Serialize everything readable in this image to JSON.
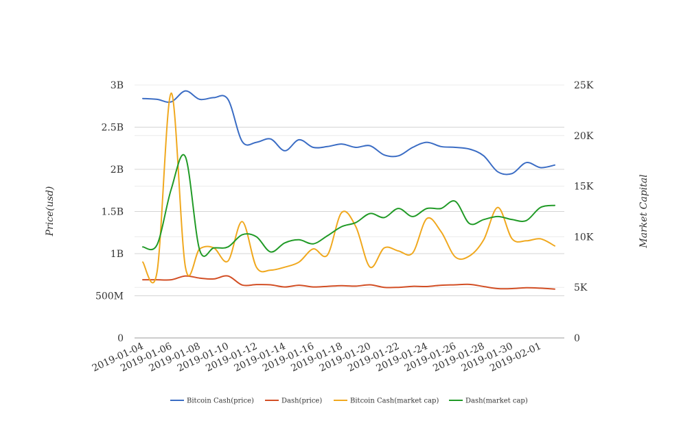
{
  "chart_data": {
    "type": "line",
    "ylabel": "Price(usd)",
    "y2label": "Market Capital",
    "ylim": [
      0,
      3000000000
    ],
    "y2lim": [
      0,
      25000
    ],
    "yticks": [
      {
        "value": 0,
        "label": "0"
      },
      {
        "value": 500000000,
        "label": "500M"
      },
      {
        "value": 1000000000,
        "label": "1B"
      },
      {
        "value": 1500000000,
        "label": "1.5B"
      },
      {
        "value": 2000000000,
        "label": "2B"
      },
      {
        "value": 2500000000,
        "label": "2.5B"
      },
      {
        "value": 3000000000,
        "label": "3B"
      }
    ],
    "y2ticks": [
      {
        "value": 0,
        "label": "0"
      },
      {
        "value": 5000,
        "label": "5K"
      },
      {
        "value": 10000,
        "label": "10K"
      },
      {
        "value": 15000,
        "label": "15K"
      },
      {
        "value": 20000,
        "label": "20K"
      },
      {
        "value": 25000,
        "label": "25K"
      }
    ],
    "x": [
      "2019-01-04",
      "2019-01-05",
      "2019-01-06",
      "2019-01-07",
      "2019-01-08",
      "2019-01-09",
      "2019-01-10",
      "2019-01-11",
      "2019-01-12",
      "2019-01-13",
      "2019-01-14",
      "2019-01-15",
      "2019-01-16",
      "2019-01-17",
      "2019-01-18",
      "2019-01-19",
      "2019-01-20",
      "2019-01-21",
      "2019-01-22",
      "2019-01-23",
      "2019-01-24",
      "2019-01-25",
      "2019-01-26",
      "2019-01-27",
      "2019-01-28",
      "2019-01-29",
      "2019-01-30",
      "2019-01-31",
      "2019-02-01",
      "2019-02-02"
    ],
    "xtick_labels": [
      "2019-01-04",
      "2019-01-06",
      "2019-01-08",
      "2019-01-10",
      "2019-01-12",
      "2019-01-14",
      "2019-01-16",
      "2019-01-18",
      "2019-01-20",
      "2019-01-22",
      "2019-01-24",
      "2019-01-26",
      "2019-01-28",
      "2019-01-30",
      "2019-02-01"
    ],
    "grid": true,
    "legend_position": "bottom",
    "series": [
      {
        "name": "Bitcoin Cash(price)",
        "axis": "left",
        "color": "#3a6cc4",
        "values": [
          2840000000,
          2830000000,
          2800000000,
          2930000000,
          2830000000,
          2850000000,
          2830000000,
          2330000000,
          2320000000,
          2360000000,
          2220000000,
          2350000000,
          2260000000,
          2270000000,
          2300000000,
          2260000000,
          2280000000,
          2170000000,
          2160000000,
          2260000000,
          2320000000,
          2270000000,
          2260000000,
          2240000000,
          2160000000,
          1970000000,
          1950000000,
          2080000000,
          2020000000,
          2050000000
        ]
      },
      {
        "name": "Dash(price)",
        "axis": "left",
        "color": "#d24e24",
        "values": [
          690000000,
          690000000,
          690000000,
          735000000,
          710000000,
          700000000,
          735000000,
          628000000,
          633000000,
          630000000,
          605000000,
          625000000,
          605000000,
          612000000,
          620000000,
          615000000,
          630000000,
          600000000,
          600000000,
          612000000,
          610000000,
          625000000,
          630000000,
          635000000,
          610000000,
          585000000,
          585000000,
          595000000,
          590000000,
          580000000
        ]
      },
      {
        "name": "Bitcoin Cash(market cap)",
        "axis": "right",
        "color": "#f0a81e",
        "values": [
          7500,
          6500,
          24200,
          7000,
          8800,
          8900,
          7600,
          11500,
          7000,
          6700,
          7000,
          7500,
          8800,
          8200,
          12400,
          11000,
          7000,
          8900,
          8600,
          8400,
          11800,
          10500,
          8000,
          8100,
          9700,
          12900,
          9800,
          9600,
          9800,
          9100
        ]
      },
      {
        "name": "Dash(market cap)",
        "axis": "right",
        "color": "#209a26",
        "values": [
          9000,
          9200,
          14700,
          17900,
          8700,
          8900,
          9000,
          10200,
          10000,
          8500,
          9400,
          9700,
          9300,
          10100,
          11000,
          11400,
          12300,
          11900,
          12800,
          12000,
          12800,
          12800,
          13500,
          11300,
          11700,
          12000,
          11700,
          11600,
          12900,
          13100
        ]
      }
    ]
  }
}
